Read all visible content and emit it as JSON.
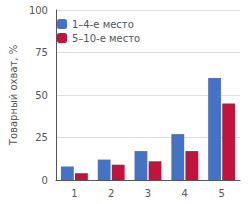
{
  "chart_data": {
    "type": "bar",
    "categories": [
      "1",
      "2",
      "3",
      "4",
      "5"
    ],
    "series": [
      {
        "name": "1–4-е место",
        "color": "#4472c4",
        "values": [
          8,
          12,
          17,
          27,
          60
        ]
      },
      {
        "name": "5–10-е место",
        "color": "#c0143c",
        "values": [
          4,
          9,
          11,
          17,
          45
        ]
      }
    ],
    "ylabel": "Товарный охват, %",
    "ylim": [
      0,
      100
    ],
    "yticks": [
      0,
      25,
      50,
      75,
      100
    ],
    "grid": true,
    "legend": "upper left"
  }
}
